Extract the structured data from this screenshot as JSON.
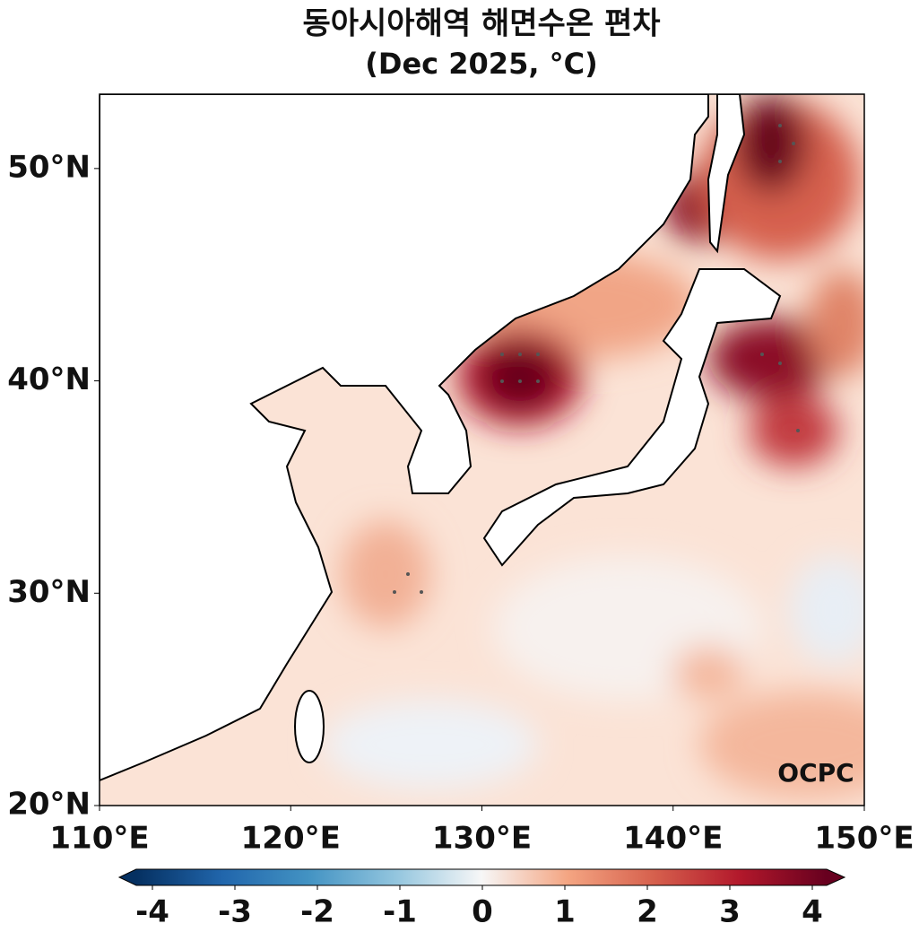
{
  "title": "동아시아해역 해면수온 편차",
  "subtitle": "(Dec 2025, °C)",
  "map": {
    "xlim": [
      110,
      150
    ],
    "ylim": [
      20,
      53.5
    ],
    "xticks": [
      {
        "value": 110,
        "label": "110°E"
      },
      {
        "value": 120,
        "label": "120°E"
      },
      {
        "value": 130,
        "label": "130°E"
      },
      {
        "value": 140,
        "label": "140°E"
      },
      {
        "value": 150,
        "label": "150°E"
      }
    ],
    "yticks": [
      {
        "value": 20,
        "label": "20°N"
      },
      {
        "value": 30,
        "label": "30°N"
      },
      {
        "value": 40,
        "label": "40°N"
      },
      {
        "value": 50,
        "label": "50°N"
      }
    ]
  },
  "colorbar": {
    "lim": [
      -4,
      4
    ],
    "ticks": [
      -4,
      -3,
      -2,
      -1,
      0,
      1,
      2,
      3,
      4
    ]
  },
  "logo": "OCPC"
}
